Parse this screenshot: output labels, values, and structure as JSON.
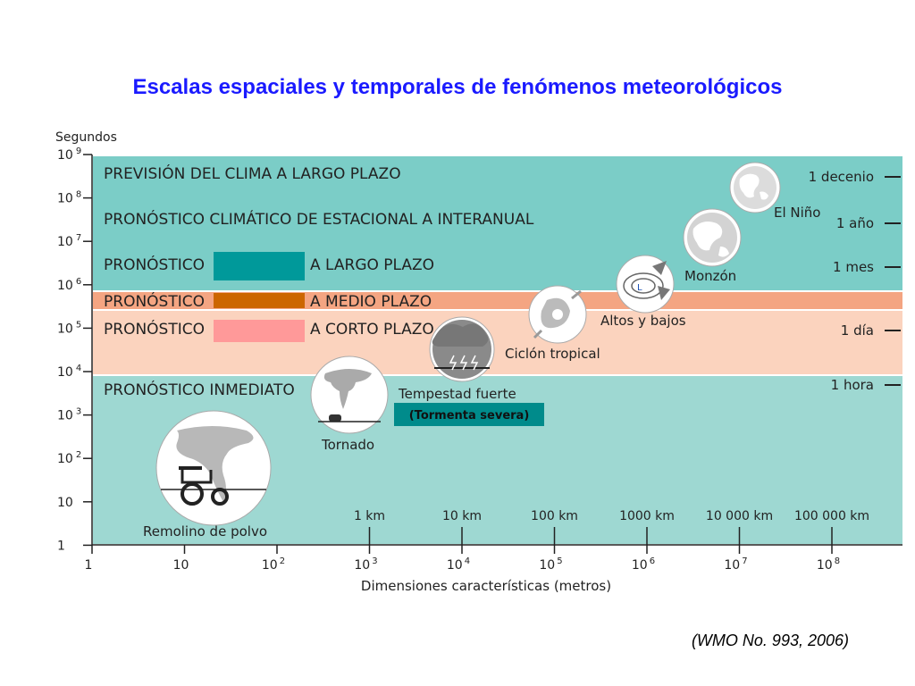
{
  "title": "Escalas espaciales y temporales de fenómenos meteorológicos",
  "credit": "(WMO No. 993, 2006)",
  "colors": {
    "title": "#1a1aff",
    "long_band": "#7bcdc7",
    "medium_band": "#f4a582",
    "short_band": "#fbd3be",
    "now_band": "#9ed8d2",
    "teal_box": "#00999a",
    "orange_box": "#cc6600",
    "pink_box": "#ff9999",
    "storm_tag": "#008b8b"
  },
  "y_axis": {
    "label": "Segundos",
    "ticks": [
      {
        "base": "10",
        "exp": "9"
      },
      {
        "base": "10",
        "exp": "8"
      },
      {
        "base": "10",
        "exp": "7"
      },
      {
        "base": "10",
        "exp": "6"
      },
      {
        "base": "10",
        "exp": "5"
      },
      {
        "base": "10",
        "exp": "4"
      },
      {
        "base": "10",
        "exp": "3"
      },
      {
        "base": "10",
        "exp": "2"
      },
      {
        "base": "10",
        "exp": ""
      },
      {
        "base": "1",
        "exp": ""
      }
    ]
  },
  "x_axis": {
    "label": "Dimensiones características (metros)",
    "ticks": [
      {
        "base": "1",
        "exp": ""
      },
      {
        "base": "10",
        "exp": ""
      },
      {
        "base": "10",
        "exp": "2"
      },
      {
        "base": "10",
        "exp": "3"
      },
      {
        "base": "10",
        "exp": "4"
      },
      {
        "base": "10",
        "exp": "5"
      },
      {
        "base": "10",
        "exp": "6"
      },
      {
        "base": "10",
        "exp": "7"
      },
      {
        "base": "10",
        "exp": "8"
      }
    ],
    "distance_labels": [
      "1 km",
      "10 km",
      "100 km",
      "1000 km",
      "10 000 km",
      "100 000 km"
    ]
  },
  "bands": [
    {
      "left": "PREVISIÓN DEL CLIMA A LARGO PLAZO",
      "right": ""
    },
    {
      "left": "PRONÓSTICO CLIMÁTICO DE ESTACIONAL A INTERANUAL",
      "right": ""
    },
    {
      "left": "PRONÓSTICO",
      "right": "A LARGO PLAZO"
    },
    {
      "left": "PRONÓSTICO",
      "right": "A MEDIO PLAZO"
    },
    {
      "left": "PRONÓSTICO",
      "right": "A CORTO PLAZO"
    },
    {
      "left": "PRONÓSTICO INMEDIATO",
      "right": ""
    }
  ],
  "time_labels": [
    "1 decenio",
    "1 año",
    "1 mes",
    "1 día",
    "1 hora"
  ],
  "phenomena": {
    "el_nino": "El Niño",
    "monzon": "Monzón",
    "altos_bajos": "Altos y bajos",
    "ciclon": "Ciclón tropical",
    "tempestad": "Tempestad fuerte",
    "tormenta": "(Tormenta severa)",
    "tornado": "Tornado",
    "remolino": "Remolino de polvo",
    "low_marker": "L"
  }
}
